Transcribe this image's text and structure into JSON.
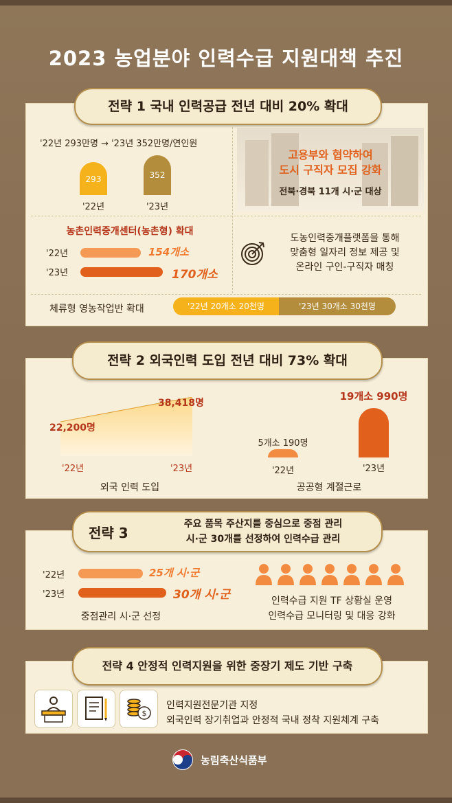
{
  "title": "2023 농업분야 인력수급 지원대책 추진",
  "s1": {
    "heading": "전략 1  국내 인력공급 전년 대비 20% 확대",
    "supply_line": "'22년 293만명 → '23년 352만명/연인원",
    "col22_value": "293",
    "col22_label": "'22년",
    "col23_value": "352",
    "col23_label": "'23년",
    "city_line1": "고용부와 협약하여",
    "city_line2": "도시 구직자 모집 강화",
    "city_sub": "전북·경북 11개 시·군 대상",
    "center_title": "농촌인력중개센터(농촌형) 확대",
    "center22_label": "'22년",
    "center22_value": "154개소",
    "center23_label": "'23년",
    "center23_value": "170개소",
    "platform_line1": "도농인력중개플랫폼을 통해",
    "platform_line2": "맞춤형 일자리 정보 제공 및",
    "platform_line3": "온라인 구인-구직자 매칭",
    "stay_label": "체류형 영농작업반 확대",
    "stay22": "'22년 20개소 20천명",
    "stay23": "'23년 30개소 30천명"
  },
  "s2": {
    "heading": "전략 2  외국인력 도입 전년 대비 73% 확대",
    "foreign_22_value": "22,200명",
    "foreign_23_value": "38,418명",
    "foreign_22_label": "'22년",
    "foreign_23_label": "'23년",
    "foreign_title": "외국 인력 도입",
    "season_22_value": "5개소 190명",
    "season_23_value": "19개소 990명",
    "season_22_label": "'22년",
    "season_23_label": "'23년",
    "season_title": "공공형 계절근로"
  },
  "s3": {
    "heading_num": "전략 3",
    "heading_line1": "주요 품목 주산지를 중심으로 중점 관리",
    "heading_line2": "시·군 30개를 선정하여 인력수급 관리",
    "b22_label": "'22년",
    "b22_value": "25개 시·군",
    "b23_label": "'23년",
    "b23_value": "30개 시·군",
    "bars_title": "중점관리 시·군 선정",
    "people_count": 7,
    "tf_line1": "인력수급 지원 TF 상황실 운영",
    "tf_line2": "인력수급 모니터링 및 대응 강화"
  },
  "s4": {
    "heading": "전략 4  안정적 인력지원을 위한 중장기 제도 기반 구축",
    "line1": "인력지원전문기관 지정",
    "line2": "외국인력 장기취업과 안정적 국내 정착 지원체계 구축"
  },
  "footer": {
    "ministry": "농림축산식품부"
  },
  "colors": {
    "yellow": "#f6b21b",
    "orange": "#e0601c",
    "lightorange": "#f59a55",
    "gold": "#b48d3c",
    "red_text": "#b5351a"
  }
}
